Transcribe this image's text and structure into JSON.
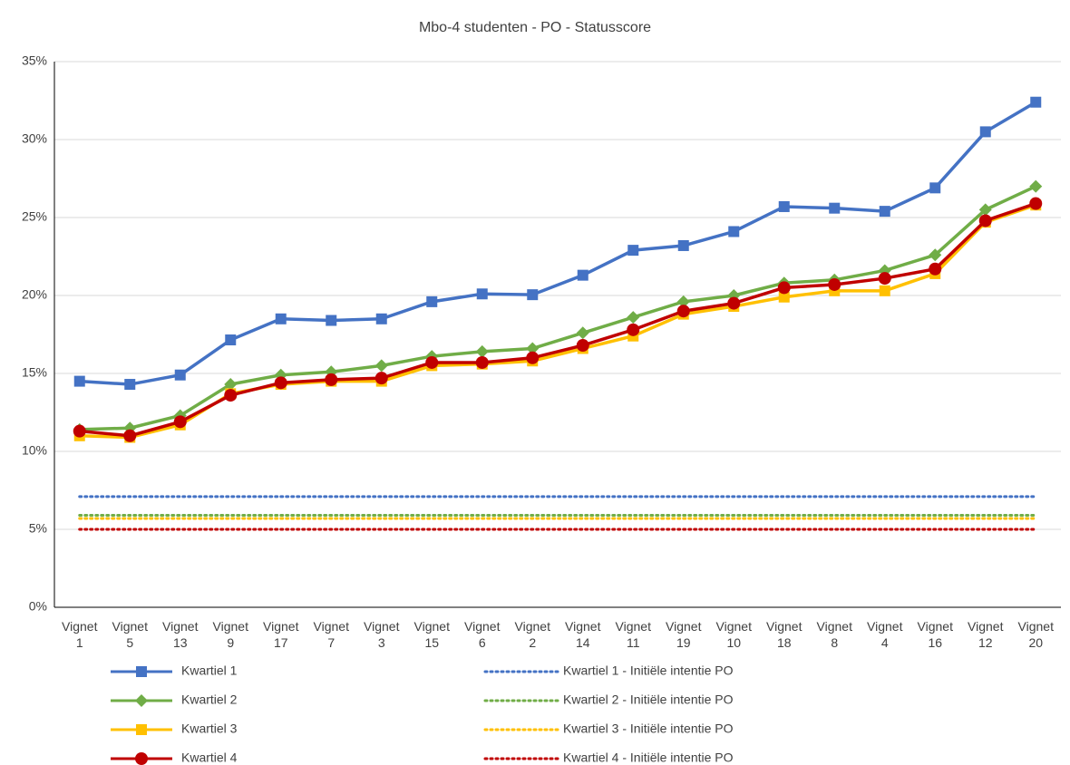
{
  "chart_data": {
    "type": "line",
    "title": "Mbo-4 studenten - PO - Statusscore",
    "categories": [
      "Vignet 1",
      "Vignet 5",
      "Vignet 13",
      "Vignet 9",
      "Vignet 17",
      "Vignet 7",
      "Vignet 3",
      "Vignet 15",
      "Vignet 6",
      "Vignet 2",
      "Vignet 14",
      "Vignet 11",
      "Vignet 19",
      "Vignet 10",
      "Vignet 18",
      "Vignet 8",
      "Vignet 4",
      "Vignet 16",
      "Vignet 12",
      "Vignet 20"
    ],
    "ylim": [
      0,
      35
    ],
    "yticks": [
      {
        "value": 0,
        "label": "0%"
      },
      {
        "value": 5,
        "label": "5%"
      },
      {
        "value": 10,
        "label": "10%"
      },
      {
        "value": 15,
        "label": "15%"
      },
      {
        "value": 20,
        "label": "20%"
      },
      {
        "value": 25,
        "label": "25%"
      },
      {
        "value": 30,
        "label": "30%"
      },
      {
        "value": 35,
        "label": "35%"
      }
    ],
    "grid": true,
    "series": [
      {
        "name": "Kwartiel 1",
        "color": "#4472c4",
        "marker": "square",
        "values": [
          14.5,
          14.3,
          14.9,
          17.15,
          18.5,
          18.4,
          18.5,
          19.6,
          20.1,
          20.05,
          21.3,
          22.9,
          23.2,
          24.1,
          25.7,
          25.6,
          25.4,
          26.9,
          30.5,
          32.4
        ]
      },
      {
        "name": "Kwartiel 2",
        "color": "#70ad47",
        "marker": "diamond",
        "values": [
          11.4,
          11.5,
          12.3,
          14.3,
          14.9,
          15.1,
          15.5,
          16.1,
          16.4,
          16.6,
          17.6,
          18.6,
          19.6,
          20.0,
          20.8,
          21.0,
          21.6,
          22.6,
          25.5,
          27.0
        ]
      },
      {
        "name": "Kwartiel 3",
        "color": "#ffc000",
        "marker": "square",
        "values": [
          11.0,
          10.9,
          11.7,
          13.7,
          14.3,
          14.5,
          14.5,
          15.5,
          15.6,
          15.8,
          16.6,
          17.4,
          18.8,
          19.3,
          19.9,
          20.3,
          20.3,
          21.4,
          24.7,
          25.8
        ]
      },
      {
        "name": "Kwartiel 4",
        "color": "#c00000",
        "marker": "circle",
        "values": [
          11.3,
          11.0,
          11.9,
          13.6,
          14.4,
          14.6,
          14.7,
          15.7,
          15.7,
          16.0,
          16.8,
          17.8,
          19.0,
          19.5,
          20.5,
          20.7,
          21.1,
          21.7,
          24.8,
          25.9
        ]
      },
      {
        "name": "Kwartiel 1 - Initiële intentie PO",
        "color": "#4472c4",
        "line_style": "dotted",
        "values": [
          7.1,
          7.1,
          7.1,
          7.1,
          7.1,
          7.1,
          7.1,
          7.1,
          7.1,
          7.1,
          7.1,
          7.1,
          7.1,
          7.1,
          7.1,
          7.1,
          7.1,
          7.1,
          7.1,
          7.1
        ]
      },
      {
        "name": "Kwartiel 2 - Initiële intentie PO",
        "color": "#70ad47",
        "line_style": "dotted",
        "values": [
          5.9,
          5.9,
          5.9,
          5.9,
          5.9,
          5.9,
          5.9,
          5.9,
          5.9,
          5.9,
          5.9,
          5.9,
          5.9,
          5.9,
          5.9,
          5.9,
          5.9,
          5.9,
          5.9,
          5.9
        ]
      },
      {
        "name": "Kwartiel 3 - Initiële intentie PO",
        "color": "#ffc000",
        "line_style": "dotted",
        "values": [
          5.7,
          5.7,
          5.7,
          5.7,
          5.7,
          5.7,
          5.7,
          5.7,
          5.7,
          5.7,
          5.7,
          5.7,
          5.7,
          5.7,
          5.7,
          5.7,
          5.7,
          5.7,
          5.7,
          5.7
        ]
      },
      {
        "name": "Kwartiel 4 - Initiële intentie PO",
        "color": "#c00000",
        "line_style": "dotted",
        "values": [
          5.0,
          5.0,
          5.0,
          5.0,
          5.0,
          5.0,
          5.0,
          5.0,
          5.0,
          5.0,
          5.0,
          5.0,
          5.0,
          5.0,
          5.0,
          5.0,
          5.0,
          5.0,
          5.0,
          5.0
        ]
      }
    ]
  }
}
